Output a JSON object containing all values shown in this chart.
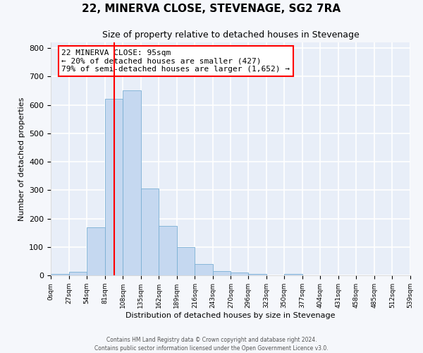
{
  "title": "22, MINERVA CLOSE, STEVENAGE, SG2 7RA",
  "subtitle": "Size of property relative to detached houses in Stevenage",
  "xlabel": "Distribution of detached houses by size in Stevenage",
  "ylabel": "Number of detached properties",
  "bin_edges": [
    0,
    27,
    54,
    81,
    108,
    135,
    162,
    189,
    216,
    243,
    270,
    296,
    323,
    350,
    377,
    404,
    431,
    458,
    485,
    512,
    539
  ],
  "bin_heights": [
    5,
    12,
    170,
    620,
    650,
    305,
    175,
    100,
    40,
    15,
    10,
    5,
    0,
    5,
    0,
    0,
    0,
    0,
    0,
    0
  ],
  "bar_color": "#c5d8f0",
  "bar_edge_color": "#7aafd4",
  "vline_x": 95,
  "vline_color": "red",
  "annotation_text": "22 MINERVA CLOSE: 95sqm\n← 20% of detached houses are smaller (427)\n79% of semi-detached houses are larger (1,652) →",
  "annotation_box_color": "white",
  "annotation_box_edge_color": "red",
  "ylim": [
    0,
    820
  ],
  "yticks": [
    0,
    100,
    200,
    300,
    400,
    500,
    600,
    700,
    800
  ],
  "tick_labels": [
    "0sqm",
    "27sqm",
    "54sqm",
    "81sqm",
    "108sqm",
    "135sqm",
    "162sqm",
    "189sqm",
    "216sqm",
    "243sqm",
    "270sqm",
    "296sqm",
    "323sqm",
    "350sqm",
    "377sqm",
    "404sqm",
    "431sqm",
    "458sqm",
    "485sqm",
    "512sqm",
    "539sqm"
  ],
  "footer_line1": "Contains HM Land Registry data © Crown copyright and database right 2024.",
  "footer_line2": "Contains public sector information licensed under the Open Government Licence v3.0.",
  "plot_bg_color": "#e8eef8",
  "fig_bg_color": "#f5f7fb",
  "grid_color": "white",
  "title_fontsize": 11,
  "subtitle_fontsize": 9,
  "ylabel_fontsize": 8,
  "xlabel_fontsize": 8,
  "annot_fontsize": 8
}
